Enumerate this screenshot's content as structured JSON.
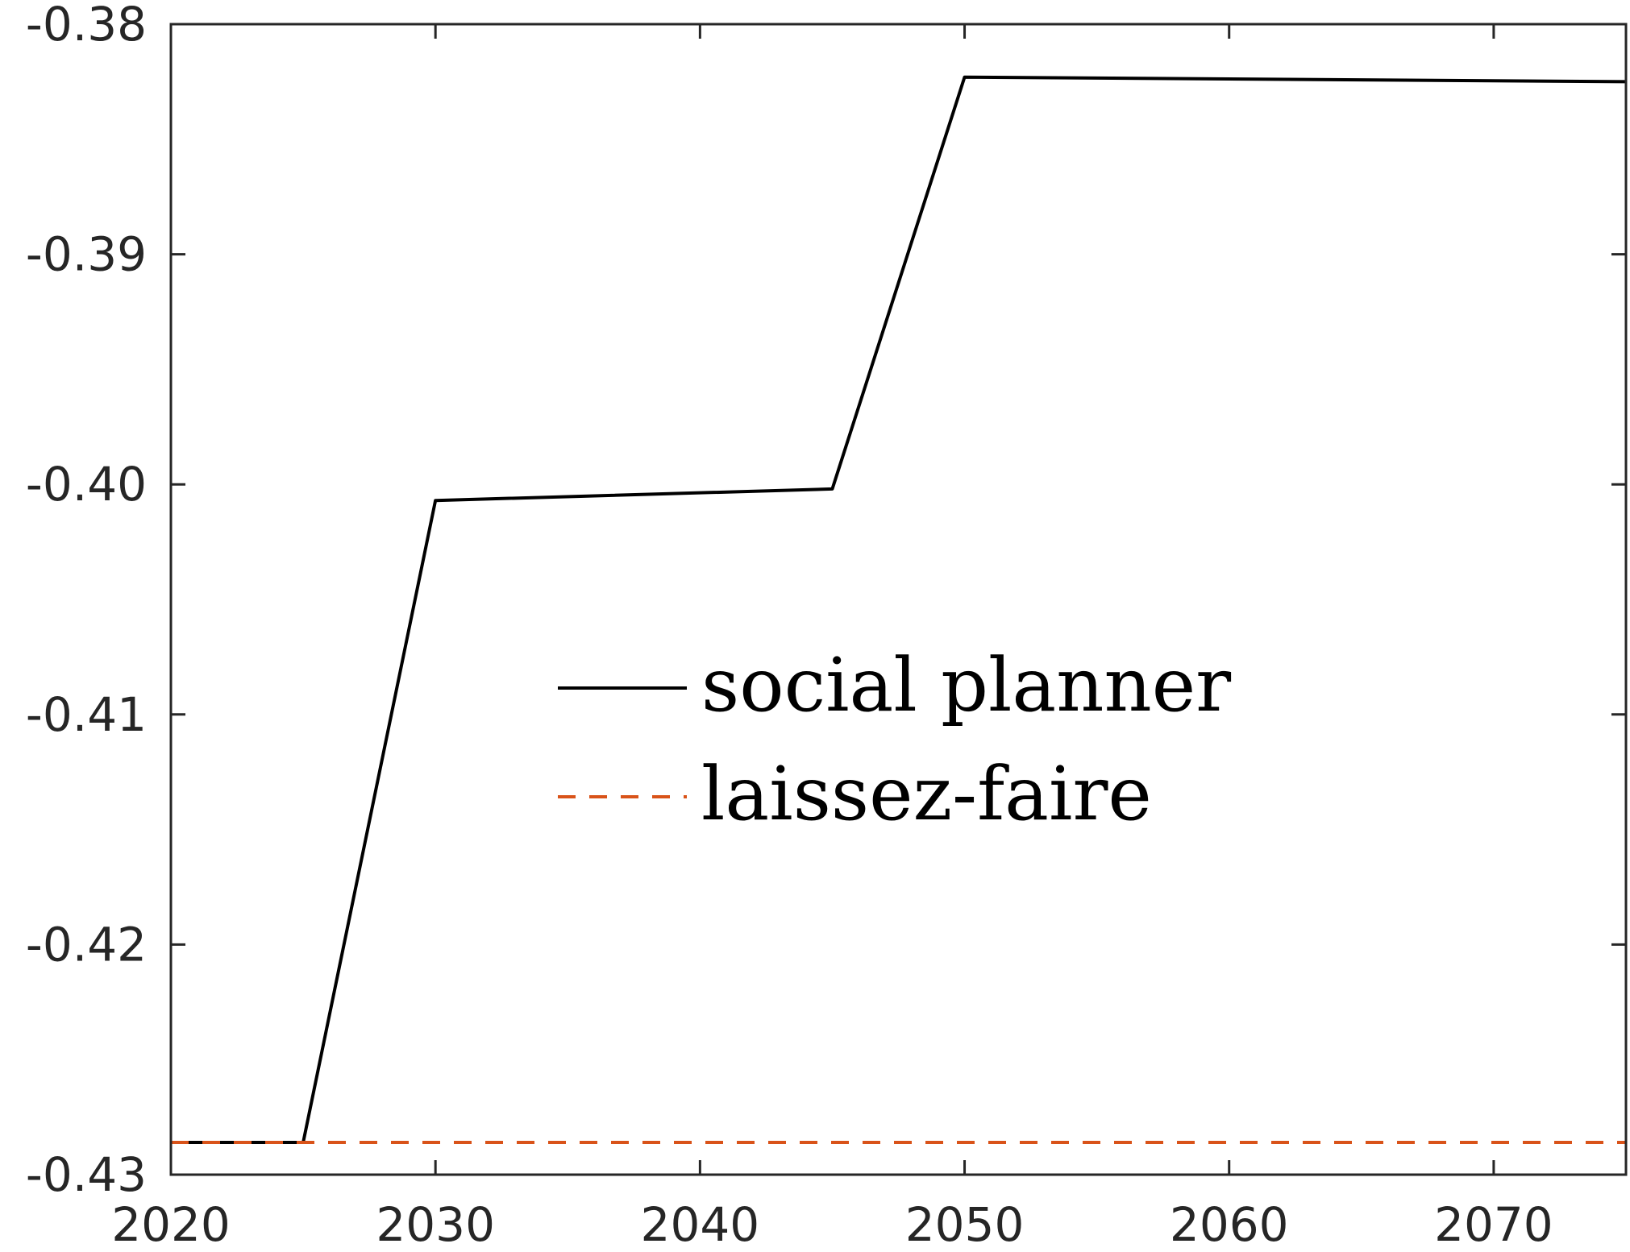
{
  "chart_data": {
    "type": "line",
    "title": "",
    "xlabel": "",
    "ylabel": "",
    "xlim": [
      2020,
      2075
    ],
    "ylim": [
      -0.43,
      -0.38
    ],
    "x_ticks": [
      2020,
      2030,
      2040,
      2050,
      2060,
      2070
    ],
    "x_tick_labels": [
      "2020",
      "2030",
      "2040",
      "2050",
      "2060",
      "2070"
    ],
    "y_ticks": [
      -0.43,
      -0.42,
      -0.41,
      -0.4,
      -0.39,
      -0.38
    ],
    "y_tick_labels": [
      "-0.43",
      "-0.42",
      "-0.41",
      "-0.40",
      "-0.39",
      "-0.38"
    ],
    "grid": false,
    "legend_position": "center",
    "series": [
      {
        "name": "social planner",
        "style": "solid",
        "color": "#000000",
        "x": [
          2020,
          2025,
          2030,
          2045,
          2050,
          2075
        ],
        "y": [
          -0.4286,
          -0.4286,
          -0.4007,
          -0.4002,
          -0.3823,
          -0.3825
        ]
      },
      {
        "name": "laissez-faire",
        "style": "dashed",
        "color": "#D95319",
        "x": [
          2020,
          2075
        ],
        "y": [
          -0.4286,
          -0.4286
        ]
      }
    ]
  }
}
